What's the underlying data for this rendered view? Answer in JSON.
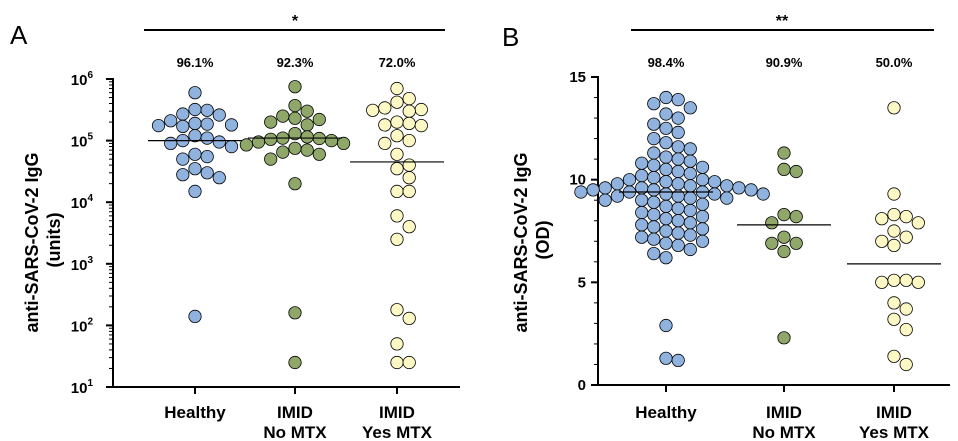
{
  "chart_data": [
    {
      "type": "scatter",
      "panel": "A",
      "ylabel": "anti-SARS-CoV-2 IgG\n(units)",
      "yscale": "log",
      "ylim": [
        10,
        1000000
      ],
      "yticks": [
        "1",
        "2",
        "3",
        "4",
        "5",
        "6"
      ],
      "categories": [
        [
          "Healthy"
        ],
        [
          "IMID",
          "No MTX"
        ],
        [
          "IMID",
          "Yes MTX"
        ]
      ],
      "percentages": [
        "96.1%",
        "92.3%",
        "72.0%"
      ],
      "significance": "*",
      "colors": [
        "#8fb2df",
        "#8fa86a",
        "#fdf8c4"
      ],
      "medians": [
        100000,
        110000,
        45000
      ],
      "series": [
        {
          "values": [
            600000,
            320000,
            310000,
            270000,
            260000,
            210000,
            190000,
            185000,
            180000,
            175000,
            170000,
            120000,
            110000,
            100000,
            95000,
            90000,
            80000,
            60000,
            55000,
            50000,
            35000,
            30000,
            28000,
            25000,
            15000,
            140
          ]
        },
        {
          "values": [
            750000,
            370000,
            300000,
            250000,
            230000,
            220000,
            200000,
            180000,
            130000,
            115000,
            110000,
            108000,
            105000,
            100000,
            95000,
            90000,
            85000,
            75000,
            70000,
            65000,
            60000,
            50000,
            20000,
            160,
            25
          ]
        },
        {
          "values": [
            700000,
            480000,
            420000,
            340000,
            320000,
            310000,
            300000,
            200000,
            190000,
            180000,
            175000,
            120000,
            100000,
            90000,
            60000,
            40000,
            35000,
            25000,
            15000,
            15000,
            6000,
            4000,
            2500,
            180,
            130,
            50,
            25,
            25
          ]
        }
      ]
    },
    {
      "type": "scatter",
      "panel": "B",
      "ylabel": "anti-SARS-CoV-2 IgG\n(OD)",
      "yscale": "linear",
      "ylim": [
        0,
        15
      ],
      "yticks": [
        0,
        5,
        10,
        15
      ],
      "categories": [
        [
          "Healthy"
        ],
        [
          "IMID",
          "No MTX"
        ],
        [
          "IMID",
          "Yes MTX"
        ]
      ],
      "percentages": [
        "98.4%",
        "90.9%",
        "50.0%"
      ],
      "significance": "**",
      "colors": [
        "#8fb2df",
        "#8fa86a",
        "#fdf8c4"
      ],
      "medians": [
        9.4,
        7.8,
        5.9
      ],
      "series": [
        {
          "values": [
            14.0,
            13.9,
            13.7,
            13.5,
            13.2,
            13.0,
            12.7,
            12.5,
            12.3,
            12.0,
            11.8,
            11.6,
            11.5,
            11.3,
            11.1,
            11.0,
            10.9,
            10.8,
            10.7,
            10.6,
            10.5,
            10.4,
            10.3,
            10.2,
            10.1,
            10.0,
            10.0,
            9.9,
            9.9,
            9.8,
            9.8,
            9.7,
            9.7,
            9.6,
            9.6,
            9.6,
            9.5,
            9.5,
            9.5,
            9.4,
            9.4,
            9.4,
            9.3,
            9.3,
            9.3,
            9.2,
            9.2,
            9.1,
            9.1,
            9.0,
            9.0,
            8.9,
            8.8,
            8.7,
            8.6,
            8.5,
            8.4,
            8.3,
            8.2,
            8.1,
            8.0,
            7.9,
            7.8,
            7.7,
            7.6,
            7.5,
            7.4,
            7.3,
            7.2,
            7.1,
            7.0,
            6.9,
            6.8,
            6.6,
            6.4,
            6.2,
            2.9,
            1.3,
            1.2
          ]
        },
        {
          "values": [
            11.3,
            10.5,
            10.4,
            8.3,
            8.2,
            7.9,
            7.2,
            6.9,
            6.9,
            6.5,
            2.3
          ]
        },
        {
          "values": [
            13.5,
            9.3,
            8.3,
            8.2,
            8.1,
            7.9,
            7.5,
            7.2,
            7.0,
            6.8,
            5.1,
            5.1,
            5.0,
            5.0,
            4.0,
            3.7,
            3.2,
            2.7,
            1.4,
            1.0
          ]
        }
      ]
    }
  ]
}
